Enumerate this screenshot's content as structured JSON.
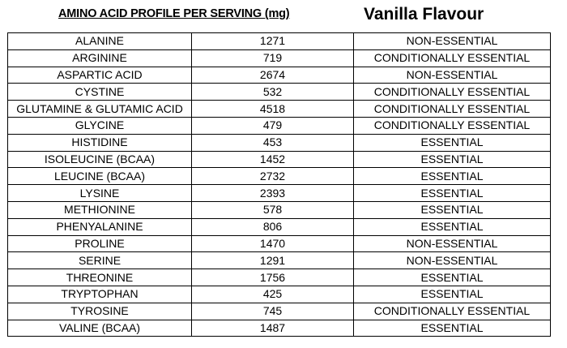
{
  "header": {
    "title": "AMINO ACID PROFILE PER SERVING (mg)",
    "flavour": "Vanilla Flavour"
  },
  "rows": [
    {
      "name": "ALANINE",
      "amount": "1271",
      "type": "NON-ESSENTIAL"
    },
    {
      "name": "ARGININE",
      "amount": "719",
      "type": "CONDITIONALLY ESSENTIAL"
    },
    {
      "name": "ASPARTIC ACID",
      "amount": "2674",
      "type": "NON-ESSENTIAL"
    },
    {
      "name": "CYSTINE",
      "amount": "532",
      "type": "CONDITIONALLY ESSENTIAL"
    },
    {
      "name": "GLUTAMINE & GLUTAMIC ACID",
      "amount": "4518",
      "type": "CONDITIONALLY ESSENTIAL"
    },
    {
      "name": "GLYCINE",
      "amount": "479",
      "type": "CONDITIONALLY ESSENTIAL"
    },
    {
      "name": "HISTIDINE",
      "amount": "453",
      "type": "ESSENTIAL"
    },
    {
      "name": "ISOLEUCINE (BCAA)",
      "amount": "1452",
      "type": "ESSENTIAL"
    },
    {
      "name": "LEUCINE (BCAA)",
      "amount": "2732",
      "type": "ESSENTIAL"
    },
    {
      "name": "LYSINE",
      "amount": "2393",
      "type": "ESSENTIAL"
    },
    {
      "name": "METHIONINE",
      "amount": "578",
      "type": "ESSENTIAL"
    },
    {
      "name": "PHENYALANINE",
      "amount": "806",
      "type": "ESSENTIAL"
    },
    {
      "name": "PROLINE",
      "amount": "1470",
      "type": "NON-ESSENTIAL"
    },
    {
      "name": "SERINE",
      "amount": "1291",
      "type": "NON-ESSENTIAL"
    },
    {
      "name": "THREONINE",
      "amount": "1756",
      "type": "ESSENTIAL"
    },
    {
      "name": "TRYPTOPHAN",
      "amount": "425",
      "type": "ESSENTIAL"
    },
    {
      "name": "TYROSINE",
      "amount": "745",
      "type": "CONDITIONALLY ESSENTIAL"
    },
    {
      "name": "VALINE (BCAA)",
      "amount": "1487",
      "type": "ESSENTIAL"
    }
  ]
}
